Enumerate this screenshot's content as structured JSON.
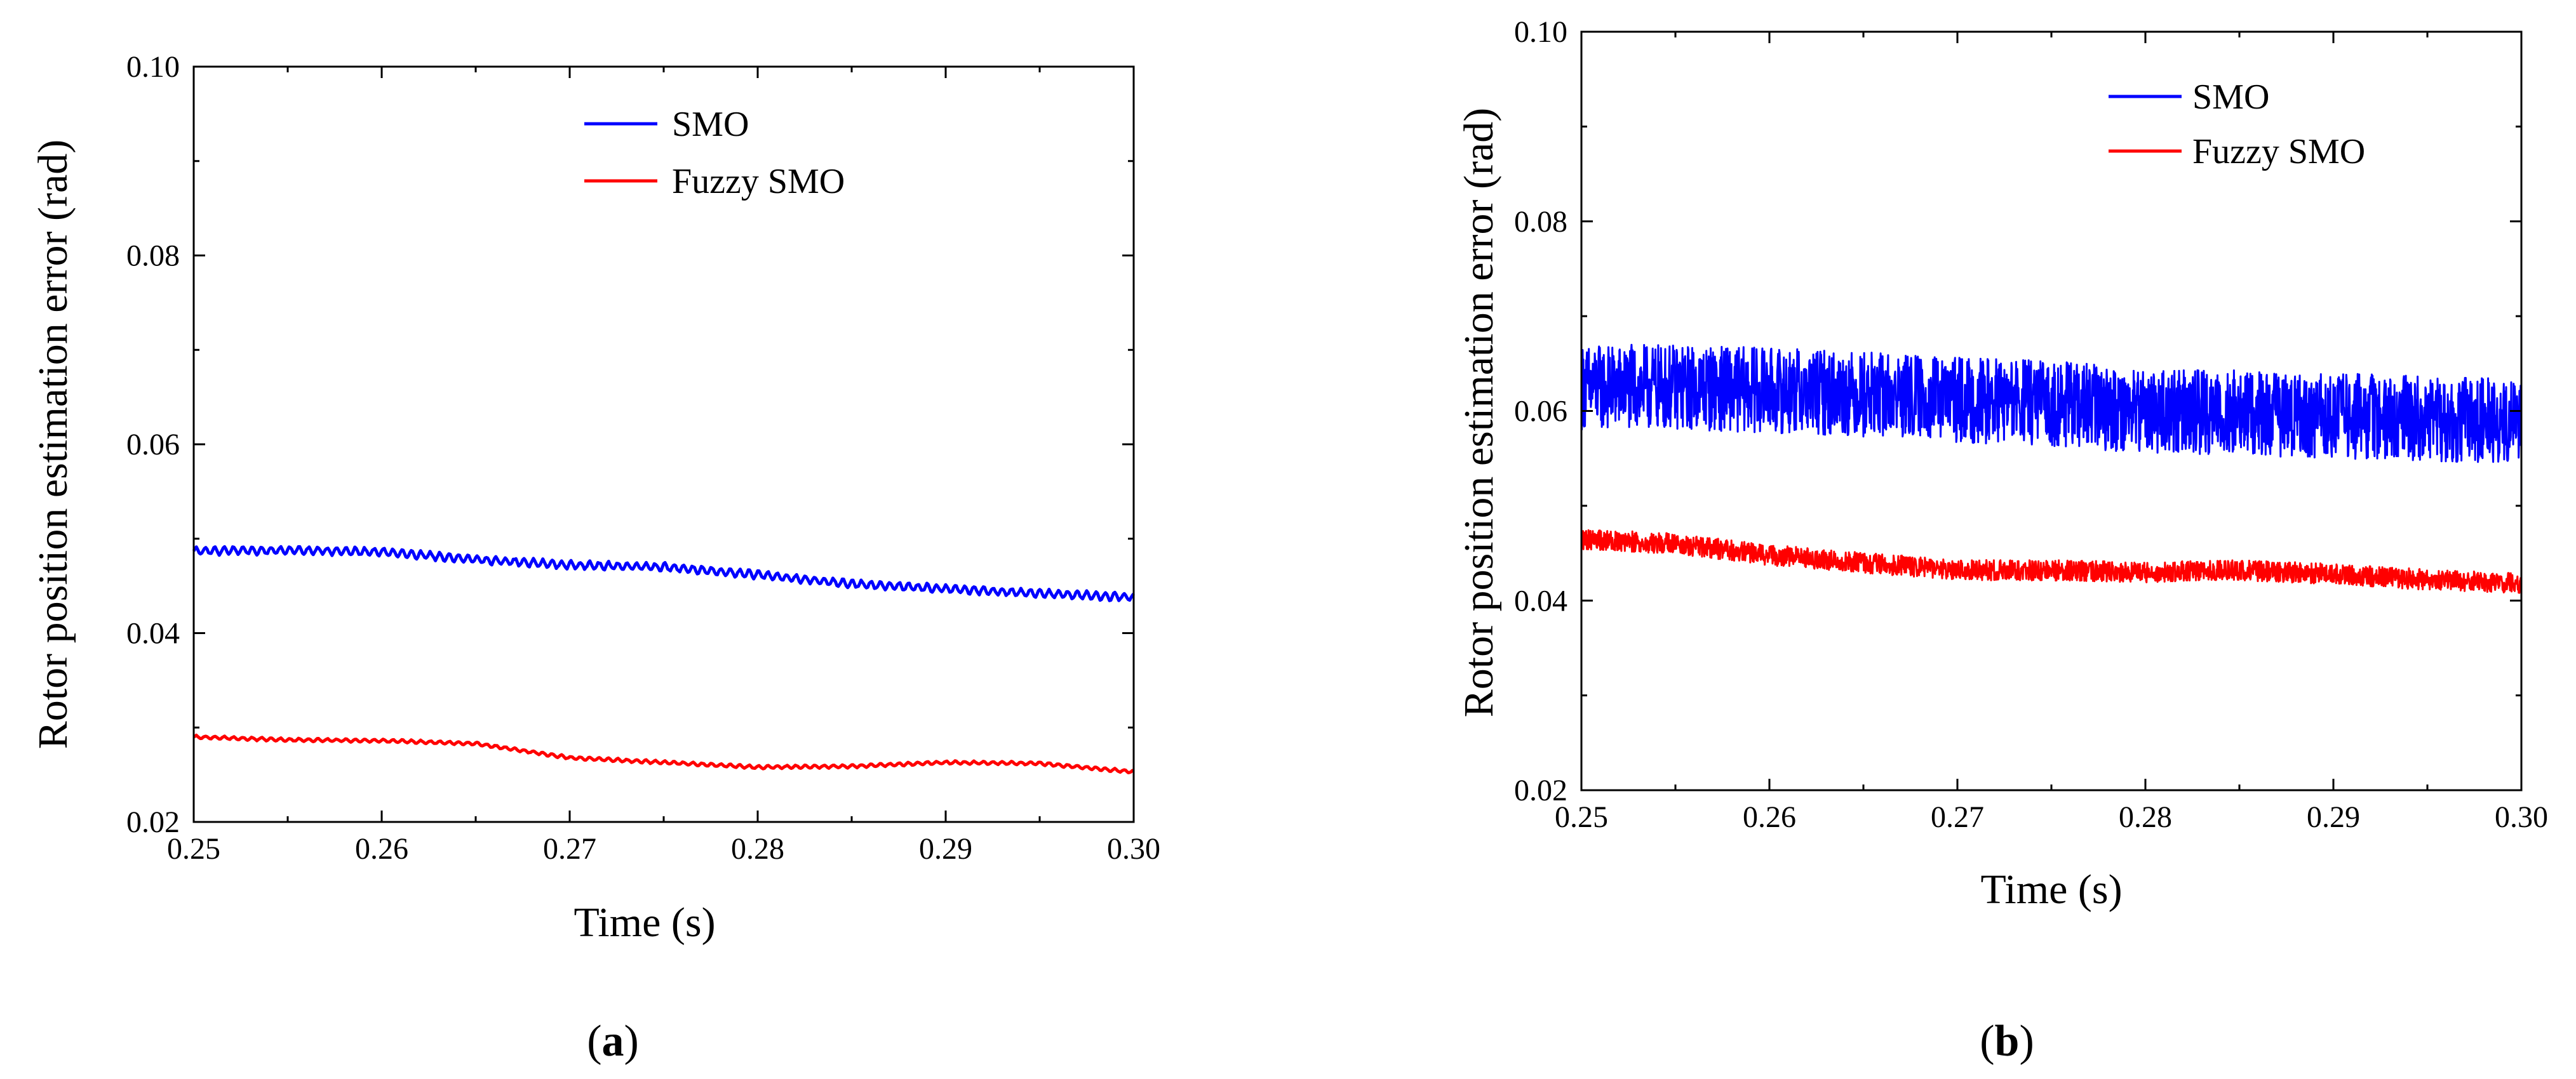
{
  "chart_data": [
    {
      "type": "line",
      "panel_label": "a",
      "caption": [
        "(",
        "a",
        ")"
      ],
      "title": "",
      "xlabel": "Time (s)",
      "ylabel": "Rotor position estimation error (rad)",
      "xlim": [
        0.25,
        0.3
      ],
      "ylim": [
        0.02,
        0.1
      ],
      "x_ticks": [
        "0.25",
        "0.26",
        "0.27",
        "0.28",
        "0.29",
        "0.30"
      ],
      "y_ticks": [
        "0.02",
        "0.04",
        "0.06",
        "0.08",
        "0.10"
      ],
      "legend_position": "top-center",
      "series": [
        {
          "name": "SMO",
          "color": "#0000ff",
          "x": [
            0.25,
            0.255,
            0.26,
            0.265,
            0.27,
            0.275,
            0.28,
            0.285,
            0.29,
            0.295,
            0.3
          ],
          "values": [
            0.0487,
            0.0488,
            0.0486,
            0.0478,
            0.0472,
            0.047,
            0.0462,
            0.0452,
            0.0447,
            0.0442,
            0.0438
          ],
          "noise_amplitude": 0.0005
        },
        {
          "name": "Fuzzy SMO",
          "color": "#ff0000",
          "x": [
            0.25,
            0.255,
            0.26,
            0.265,
            0.27,
            0.275,
            0.28,
            0.285,
            0.29,
            0.295,
            0.3
          ],
          "values": [
            0.029,
            0.0287,
            0.0286,
            0.0283,
            0.0268,
            0.0263,
            0.0258,
            0.0259,
            0.0263,
            0.0262,
            0.0253
          ],
          "noise_amplitude": 0.0002
        }
      ]
    },
    {
      "type": "line",
      "panel_label": "b",
      "caption": [
        "(",
        "b",
        ")"
      ],
      "title": "",
      "xlabel": "Time (s)",
      "ylabel": "Rotor position estimation error (rad)",
      "xlim": [
        0.25,
        0.3
      ],
      "ylim": [
        0.02,
        0.1
      ],
      "x_ticks": [
        "0.25",
        "0.26",
        "0.27",
        "0.28",
        "0.29",
        "0.30"
      ],
      "y_ticks": [
        "0.02",
        "0.04",
        "0.06",
        "0.08",
        "0.10"
      ],
      "legend_position": "top-center",
      "series": [
        {
          "name": "SMO",
          "color": "#0000ff",
          "x": [
            0.25,
            0.255,
            0.26,
            0.265,
            0.27,
            0.275,
            0.28,
            0.285,
            0.29,
            0.295,
            0.3
          ],
          "values": [
            0.0625,
            0.0625,
            0.0622,
            0.0618,
            0.0612,
            0.0608,
            0.06,
            0.0598,
            0.0595,
            0.0592,
            0.059
          ],
          "noise_amplitude": 0.0045
        },
        {
          "name": "Fuzzy SMO",
          "color": "#ff0000",
          "x": [
            0.25,
            0.255,
            0.26,
            0.265,
            0.27,
            0.275,
            0.28,
            0.285,
            0.29,
            0.295,
            0.3
          ],
          "values": [
            0.0465,
            0.046,
            0.0448,
            0.044,
            0.0432,
            0.0432,
            0.043,
            0.0432,
            0.0428,
            0.0422,
            0.0418
          ],
          "noise_amplitude": 0.0012
        }
      ]
    }
  ]
}
